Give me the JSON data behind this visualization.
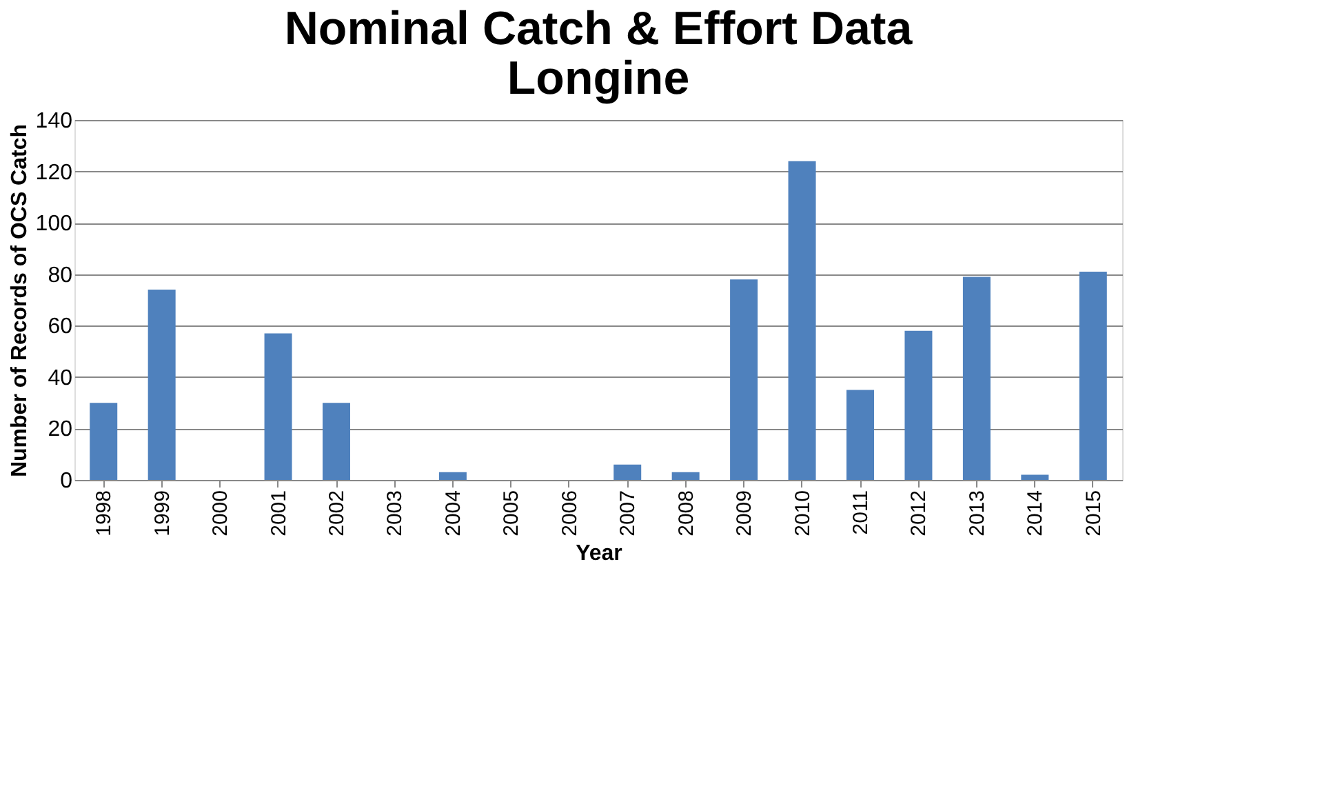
{
  "chart_data": {
    "type": "bar",
    "title": [
      "Nominal Catch & Effort Data",
      "Longine"
    ],
    "xlabel": "Year",
    "ylabel": "Number of Records of OCS Catch",
    "categories": [
      "1998",
      "1999",
      "2000",
      "2001",
      "2002",
      "2003",
      "2004",
      "2005",
      "2006",
      "2007",
      "2008",
      "2009",
      "2010",
      "2011",
      "2012",
      "2013",
      "2014",
      "2015"
    ],
    "values": [
      30,
      74,
      0,
      57,
      30,
      0,
      3,
      0,
      0,
      6,
      3,
      78,
      124,
      35,
      58,
      79,
      2,
      81
    ],
    "color": "#4f81bd",
    "ylim": [
      0,
      140
    ],
    "yticks": [
      0,
      20,
      40,
      60,
      80,
      100,
      120,
      140
    ],
    "grid": "y"
  }
}
